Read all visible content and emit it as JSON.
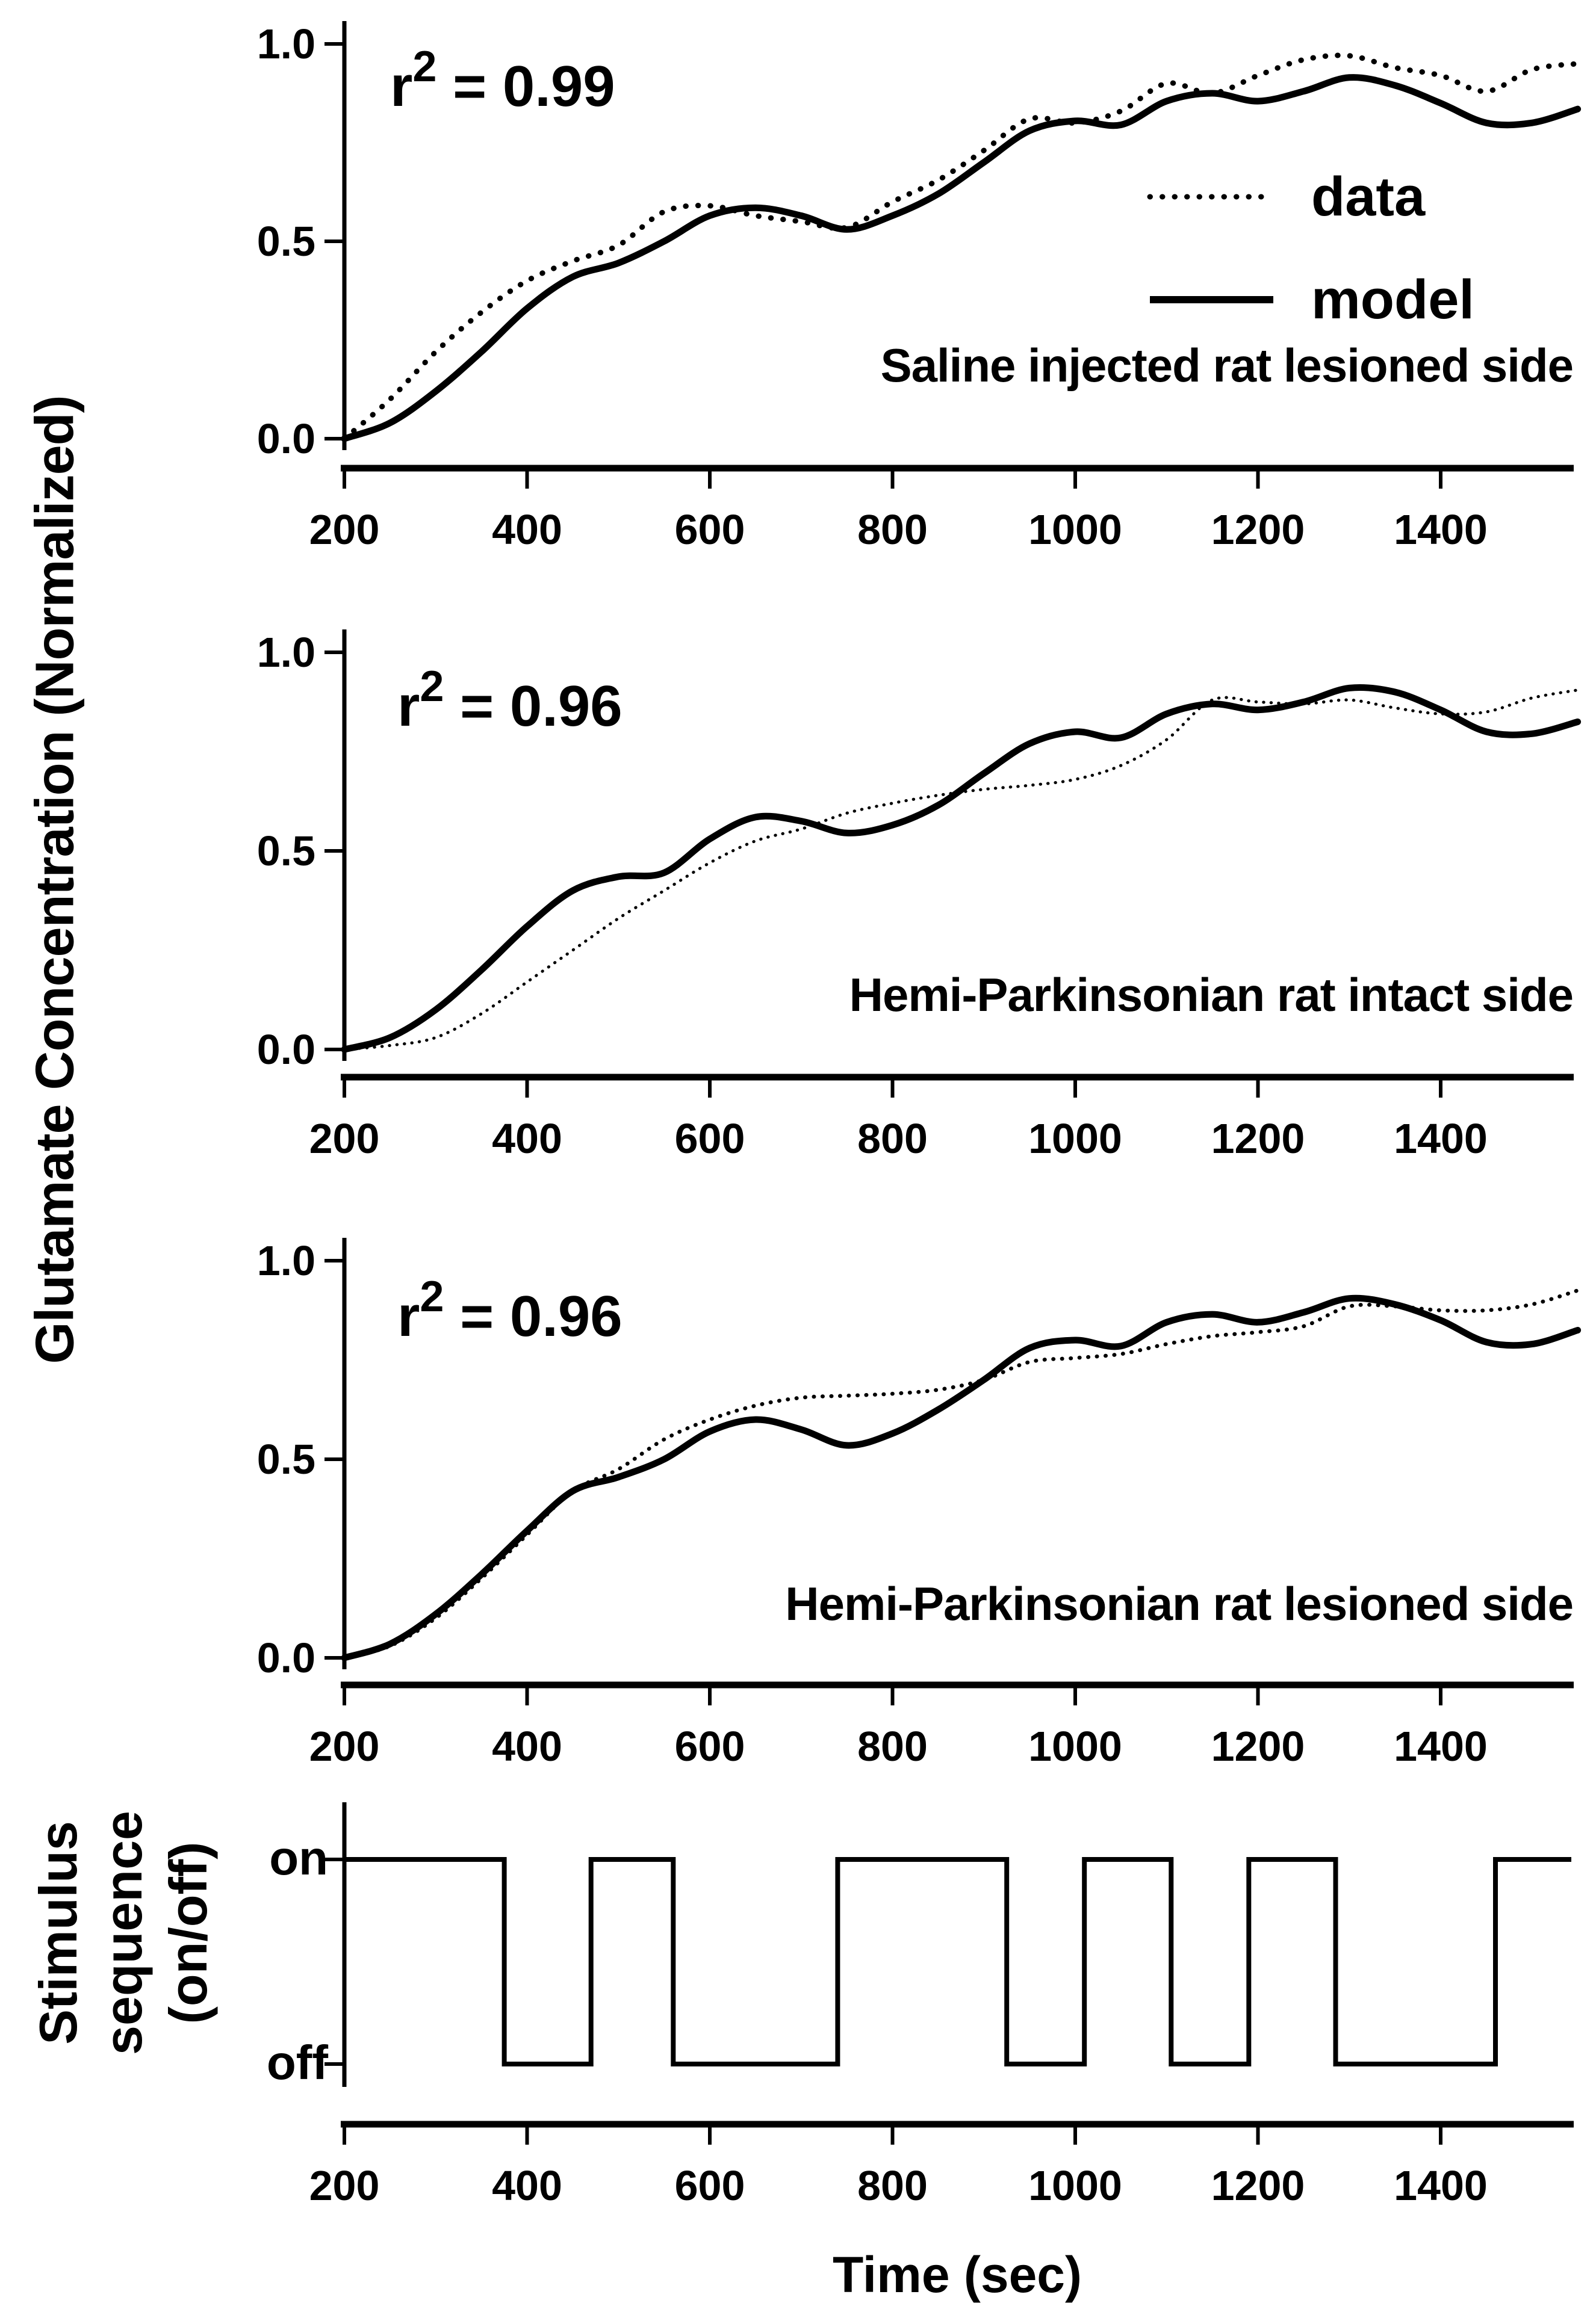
{
  "figure": {
    "background": "#ffffff",
    "ink": "#000000"
  },
  "labels": {
    "y_axis_main": "Glutamate Concentration (Normalized)",
    "stimulus_line1": "Stimulus",
    "stimulus_line2": "sequence",
    "stimulus_line3": "(on/off)"
  },
  "chart_data": [
    {
      "id": "panel1-saline-lesioned",
      "type": "line",
      "title": "Saline injected rat lesioned side",
      "r2": {
        "base": "r",
        "exp": "2",
        "rest": " = 0.99"
      },
      "xlim": [
        200,
        1543
      ],
      "ylim": [
        0,
        1
      ],
      "xticks": [
        200,
        400,
        600,
        800,
        1000,
        1200,
        1400
      ],
      "yticks": [
        {
          "label": "0.0",
          "value": 0
        },
        {
          "label": "0.5",
          "value": 0.5
        },
        {
          "label": "1.0",
          "value": 1
        }
      ],
      "legend_position": "inside-upper-right",
      "x": [
        200,
        250,
        300,
        350,
        400,
        450,
        500,
        550,
        600,
        650,
        700,
        750,
        800,
        850,
        900,
        950,
        1000,
        1050,
        1100,
        1150,
        1200,
        1250,
        1300,
        1350,
        1400,
        1450,
        1500,
        1550
      ],
      "series": [
        {
          "name": "data",
          "style": "dotted",
          "values": [
            0.0,
            0.1,
            0.22,
            0.32,
            0.4,
            0.45,
            0.49,
            0.575,
            0.59,
            0.565,
            0.55,
            0.535,
            0.6,
            0.655,
            0.73,
            0.81,
            0.8,
            0.83,
            0.9,
            0.875,
            0.92,
            0.96,
            0.97,
            0.94,
            0.92,
            0.88,
            0.935,
            0.95
          ]
        },
        {
          "name": "model",
          "style": "solid",
          "values": [
            0.0,
            0.04,
            0.12,
            0.22,
            0.33,
            0.41,
            0.445,
            0.5,
            0.565,
            0.585,
            0.565,
            0.53,
            0.565,
            0.62,
            0.7,
            0.78,
            0.805,
            0.795,
            0.855,
            0.875,
            0.855,
            0.88,
            0.915,
            0.895,
            0.85,
            0.8,
            0.8,
            0.835
          ]
        }
      ]
    },
    {
      "id": "panel2-hemiparkinsonian-intact",
      "type": "line",
      "title": "Hemi-Parkinsonian rat intact side",
      "r2": {
        "base": "r",
        "exp": "2",
        "rest": " = 0.96"
      },
      "xlim": [
        200,
        1543
      ],
      "ylim": [
        0,
        1
      ],
      "xticks": [
        200,
        400,
        600,
        800,
        1000,
        1200,
        1400
      ],
      "yticks": [
        {
          "label": "0.0",
          "value": 0
        },
        {
          "label": "0.5",
          "value": 0.5
        },
        {
          "label": "1.0",
          "value": 1
        }
      ],
      "x": [
        200,
        250,
        300,
        350,
        400,
        450,
        500,
        550,
        600,
        650,
        700,
        750,
        800,
        850,
        900,
        950,
        1000,
        1050,
        1100,
        1150,
        1200,
        1250,
        1300,
        1350,
        1400,
        1450,
        1500,
        1550
      ],
      "series": [
        {
          "name": "data",
          "style": "dotted",
          "values": [
            0.0,
            0.01,
            0.03,
            0.09,
            0.17,
            0.25,
            0.33,
            0.4,
            0.47,
            0.525,
            0.555,
            0.595,
            0.62,
            0.64,
            0.655,
            0.665,
            0.68,
            0.715,
            0.78,
            0.88,
            0.875,
            0.87,
            0.88,
            0.86,
            0.845,
            0.85,
            0.885,
            0.905
          ]
        },
        {
          "name": "model",
          "style": "solid",
          "values": [
            0.0,
            0.03,
            0.1,
            0.2,
            0.31,
            0.4,
            0.435,
            0.445,
            0.53,
            0.585,
            0.575,
            0.545,
            0.565,
            0.615,
            0.695,
            0.77,
            0.8,
            0.785,
            0.845,
            0.87,
            0.855,
            0.875,
            0.91,
            0.9,
            0.855,
            0.8,
            0.795,
            0.825
          ]
        }
      ]
    },
    {
      "id": "panel3-hemiparkinsonian-lesioned",
      "type": "line",
      "title": "Hemi-Parkinsonian rat lesioned side",
      "r2": {
        "base": "r",
        "exp": "2",
        "rest": " = 0.96"
      },
      "xlim": [
        200,
        1543
      ],
      "ylim": [
        0,
        1
      ],
      "xticks": [
        200,
        400,
        600,
        800,
        1000,
        1200,
        1400
      ],
      "yticks": [
        {
          "label": "0.0",
          "value": 0
        },
        {
          "label": "0.5",
          "value": 0.5
        },
        {
          "label": "1.0",
          "value": 1
        }
      ],
      "x": [
        200,
        250,
        300,
        350,
        400,
        450,
        500,
        550,
        600,
        650,
        700,
        750,
        800,
        850,
        900,
        950,
        1000,
        1050,
        1100,
        1150,
        1200,
        1250,
        1300,
        1350,
        1400,
        1450,
        1500,
        1550
      ],
      "series": [
        {
          "name": "data",
          "style": "dotted",
          "values": [
            0.0,
            0.03,
            0.1,
            0.2,
            0.31,
            0.42,
            0.475,
            0.55,
            0.6,
            0.635,
            0.655,
            0.66,
            0.665,
            0.675,
            0.7,
            0.745,
            0.755,
            0.765,
            0.79,
            0.81,
            0.82,
            0.835,
            0.885,
            0.885,
            0.875,
            0.875,
            0.89,
            0.925
          ]
        },
        {
          "name": "model",
          "style": "solid",
          "values": [
            0.0,
            0.035,
            0.11,
            0.21,
            0.32,
            0.42,
            0.455,
            0.5,
            0.57,
            0.6,
            0.575,
            0.535,
            0.565,
            0.625,
            0.7,
            0.78,
            0.8,
            0.785,
            0.845,
            0.865,
            0.845,
            0.87,
            0.905,
            0.89,
            0.85,
            0.795,
            0.79,
            0.825
          ]
        }
      ]
    },
    {
      "id": "panel4-stimulus-sequence",
      "type": "step",
      "xlabel": "Time (sec)",
      "level_labels": {
        "on": "on",
        "off": "off"
      },
      "xlim": [
        200,
        1543
      ],
      "xticks": [
        200,
        400,
        600,
        800,
        1000,
        1200,
        1400
      ],
      "segments": [
        {
          "from": 200,
          "to": 375,
          "level": "on"
        },
        {
          "from": 375,
          "to": 470,
          "level": "off"
        },
        {
          "from": 470,
          "to": 560,
          "level": "on"
        },
        {
          "from": 560,
          "to": 740,
          "level": "off"
        },
        {
          "from": 740,
          "to": 925,
          "level": "on"
        },
        {
          "from": 925,
          "to": 1010,
          "level": "off"
        },
        {
          "from": 1010,
          "to": 1105,
          "level": "on"
        },
        {
          "from": 1105,
          "to": 1190,
          "level": "off"
        },
        {
          "from": 1190,
          "to": 1285,
          "level": "on"
        },
        {
          "from": 1285,
          "to": 1460,
          "level": "off"
        },
        {
          "from": 1460,
          "to": 1543,
          "level": "on"
        }
      ]
    }
  ]
}
